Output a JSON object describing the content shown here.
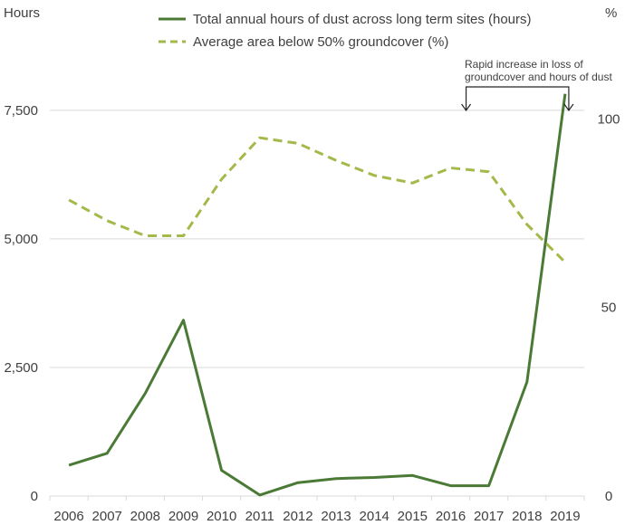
{
  "chart_data": {
    "type": "line",
    "categories": [
      "2006",
      "2007",
      "2008",
      "2009",
      "2010",
      "2011",
      "2012",
      "2013",
      "2014",
      "2015",
      "2016",
      "2017",
      "2018",
      "2019"
    ],
    "series": [
      {
        "name": "Total annual hours of dust across long term sites (hours)",
        "axis": "left",
        "style": "solid",
        "color": "#4a7a36",
        "values": [
          600,
          830,
          2000,
          3420,
          500,
          20,
          260,
          340,
          360,
          400,
          200,
          200,
          2220,
          7820
        ]
      },
      {
        "name": "Average area below 50% groundcover (%)",
        "axis": "right",
        "style": "dashed",
        "color": "#a3b94a",
        "values": [
          78.5,
          73,
          69,
          69,
          84,
          95,
          93.5,
          89,
          85,
          83,
          87,
          86,
          72,
          62
        ]
      }
    ],
    "yleft": {
      "label": "Hours",
      "lim": [
        0,
        8800
      ],
      "ticks": [
        0,
        2500,
        5000,
        7500
      ],
      "tick_labels": [
        "0",
        "2,500",
        "5,000",
        "7,500"
      ]
    },
    "yright": {
      "label": "%",
      "lim": [
        0,
        120
      ],
      "ticks": [
        0,
        50,
        100
      ],
      "tick_labels": [
        "0",
        "50",
        "100"
      ]
    },
    "grid": true,
    "legend_position": "top",
    "annotation": {
      "lines": [
        "Rapid increase in loss of",
        "groundcover and hours of dust"
      ],
      "from_category": "2017",
      "to_category": "2019"
    }
  }
}
